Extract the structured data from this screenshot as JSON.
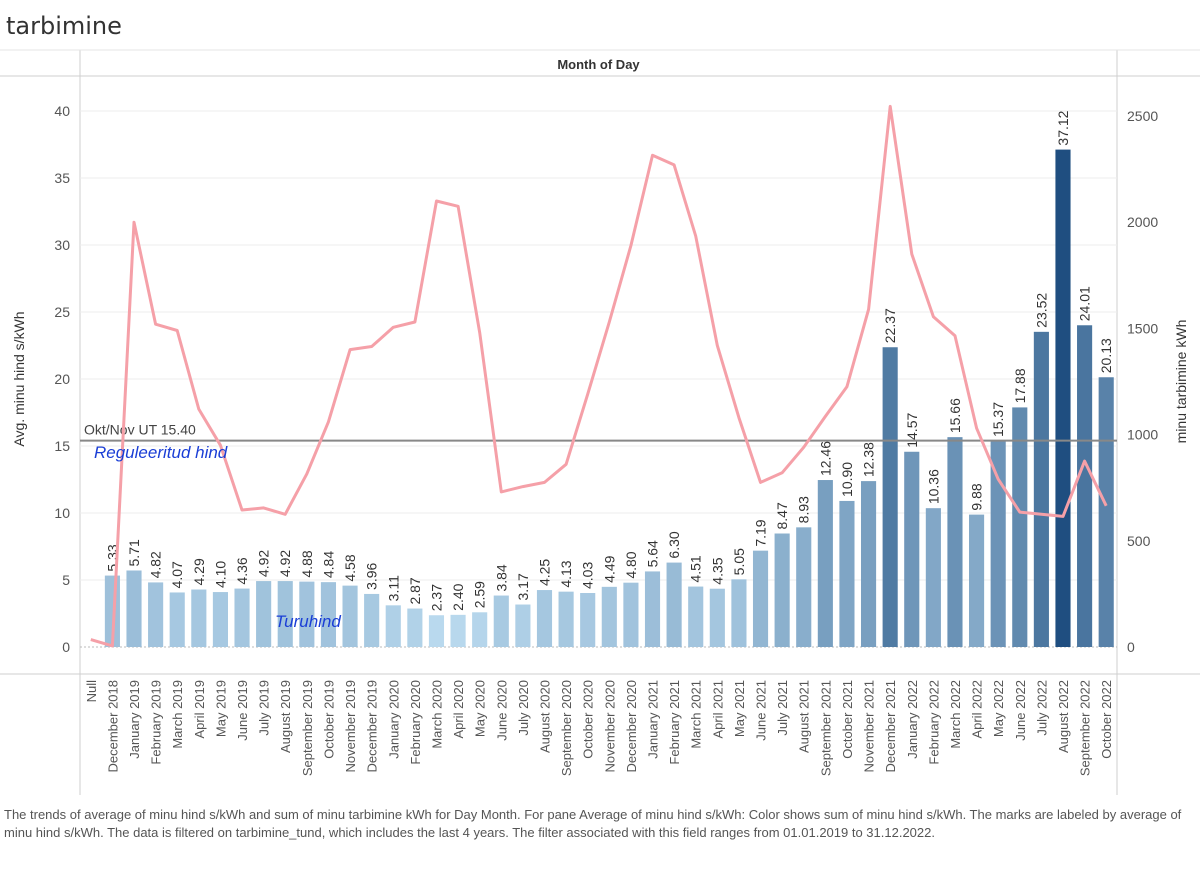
{
  "title": "tarbimine",
  "caption": "The trends of average of minu hind s/kWh and sum of minu tarbimine kWh for Day Month.  For pane Average of minu hind s/kWh:  Color shows sum of minu hind s/kWh.  The marks are labeled by average of minu hind s/kWh. The data is filtered on tarbimine_tund, which includes the last 4 years. The filter associated with this field ranges from 01.01.2019 to 31.12.2022.",
  "chart_data": {
    "type": "bar",
    "header": "Month of Day",
    "ylabel": "Avg. minu hind s/kWh",
    "y2label": "minu tarbimine kWh",
    "ylim": [
      0,
      40
    ],
    "y2lim": [
      0,
      2500
    ],
    "yticks": [
      0,
      5,
      10,
      15,
      20,
      25,
      30,
      35,
      40
    ],
    "y2ticks": [
      0,
      500,
      1000,
      1500,
      2000,
      2500
    ],
    "categories": [
      "Null",
      "December 2018",
      "January 2019",
      "February 2019",
      "March 2019",
      "April 2019",
      "May 2019",
      "June 2019",
      "July 2019",
      "August 2019",
      "September 2019",
      "October 2019",
      "November 2019",
      "December 2019",
      "January 2020",
      "February 2020",
      "March 2020",
      "April 2020",
      "May 2020",
      "June 2020",
      "July 2020",
      "August 2020",
      "September 2020",
      "October 2020",
      "November 2020",
      "December 2020",
      "January 2021",
      "February 2021",
      "March 2021",
      "April 2021",
      "May 2021",
      "June 2021",
      "July 2021",
      "August 2021",
      "September 2021",
      "October 2021",
      "November 2021",
      "December 2021",
      "January 2022",
      "February 2022",
      "March 2022",
      "April 2022",
      "May 2022",
      "June 2022",
      "July 2022",
      "August 2022",
      "September 2022",
      "October 2022"
    ],
    "bars": {
      "name": "Avg. minu hind s/kWh",
      "values": [
        null,
        5.33,
        5.71,
        4.82,
        4.07,
        4.29,
        4.1,
        4.36,
        4.92,
        4.92,
        4.88,
        4.84,
        4.58,
        3.96,
        3.11,
        2.87,
        2.37,
        2.4,
        2.59,
        3.84,
        3.17,
        4.25,
        4.13,
        4.03,
        4.49,
        4.8,
        5.64,
        6.3,
        4.51,
        4.35,
        5.05,
        7.19,
        8.47,
        8.93,
        12.46,
        10.9,
        12.38,
        22.37,
        14.57,
        10.36,
        15.66,
        9.88,
        15.37,
        17.88,
        23.52,
        37.12,
        24.01,
        20.13
      ],
      "labels": [
        "",
        "5.33",
        "5.71",
        "4.82",
        "4.07",
        "4.29",
        "4.10",
        "4.36",
        "4.92",
        "4.92",
        "4.88",
        "4.84",
        "4.58",
        "3.96",
        "3.11",
        "2.87",
        "2.37",
        "2.40",
        "2.59",
        "3.84",
        "3.17",
        "4.25",
        "4.13",
        "4.03",
        "4.49",
        "4.80",
        "5.64",
        "6.30",
        "4.51",
        "4.35",
        "5.05",
        "7.19",
        "8.47",
        "8.93",
        "12.46",
        "10.90",
        "12.38",
        "22.37",
        "14.57",
        "10.36",
        "15.66",
        "9.88",
        "15.37",
        "17.88",
        "23.52",
        "37.12",
        "24.01",
        "20.13"
      ],
      "color_low": "#b9d9ee",
      "color_high": "#1f4e80"
    },
    "line": {
      "name": "Sum of minu tarbimine kWh",
      "color": "#f5a0a8",
      "values": [
        35,
        5,
        2000,
        1520,
        1490,
        1120,
        950,
        645,
        655,
        625,
        815,
        1060,
        1400,
        1415,
        1505,
        1530,
        2100,
        2075,
        1480,
        730,
        755,
        775,
        860,
        1190,
        1530,
        1890,
        2315,
        2270,
        1935,
        1420,
        1080,
        775,
        820,
        940,
        1085,
        1225,
        1590,
        2545,
        1850,
        1555,
        1465,
        1030,
        790,
        635,
        625,
        615,
        875,
        665
      ]
    },
    "reference_line": {
      "value": 15.4,
      "label": "Okt/Nov UT 15.40",
      "color": "#888888"
    },
    "annotations": [
      {
        "text": "Reguleeritud hind",
        "color": "#1a3ed6"
      },
      {
        "text": "Turuhind",
        "color": "#1a3ed6"
      }
    ]
  }
}
